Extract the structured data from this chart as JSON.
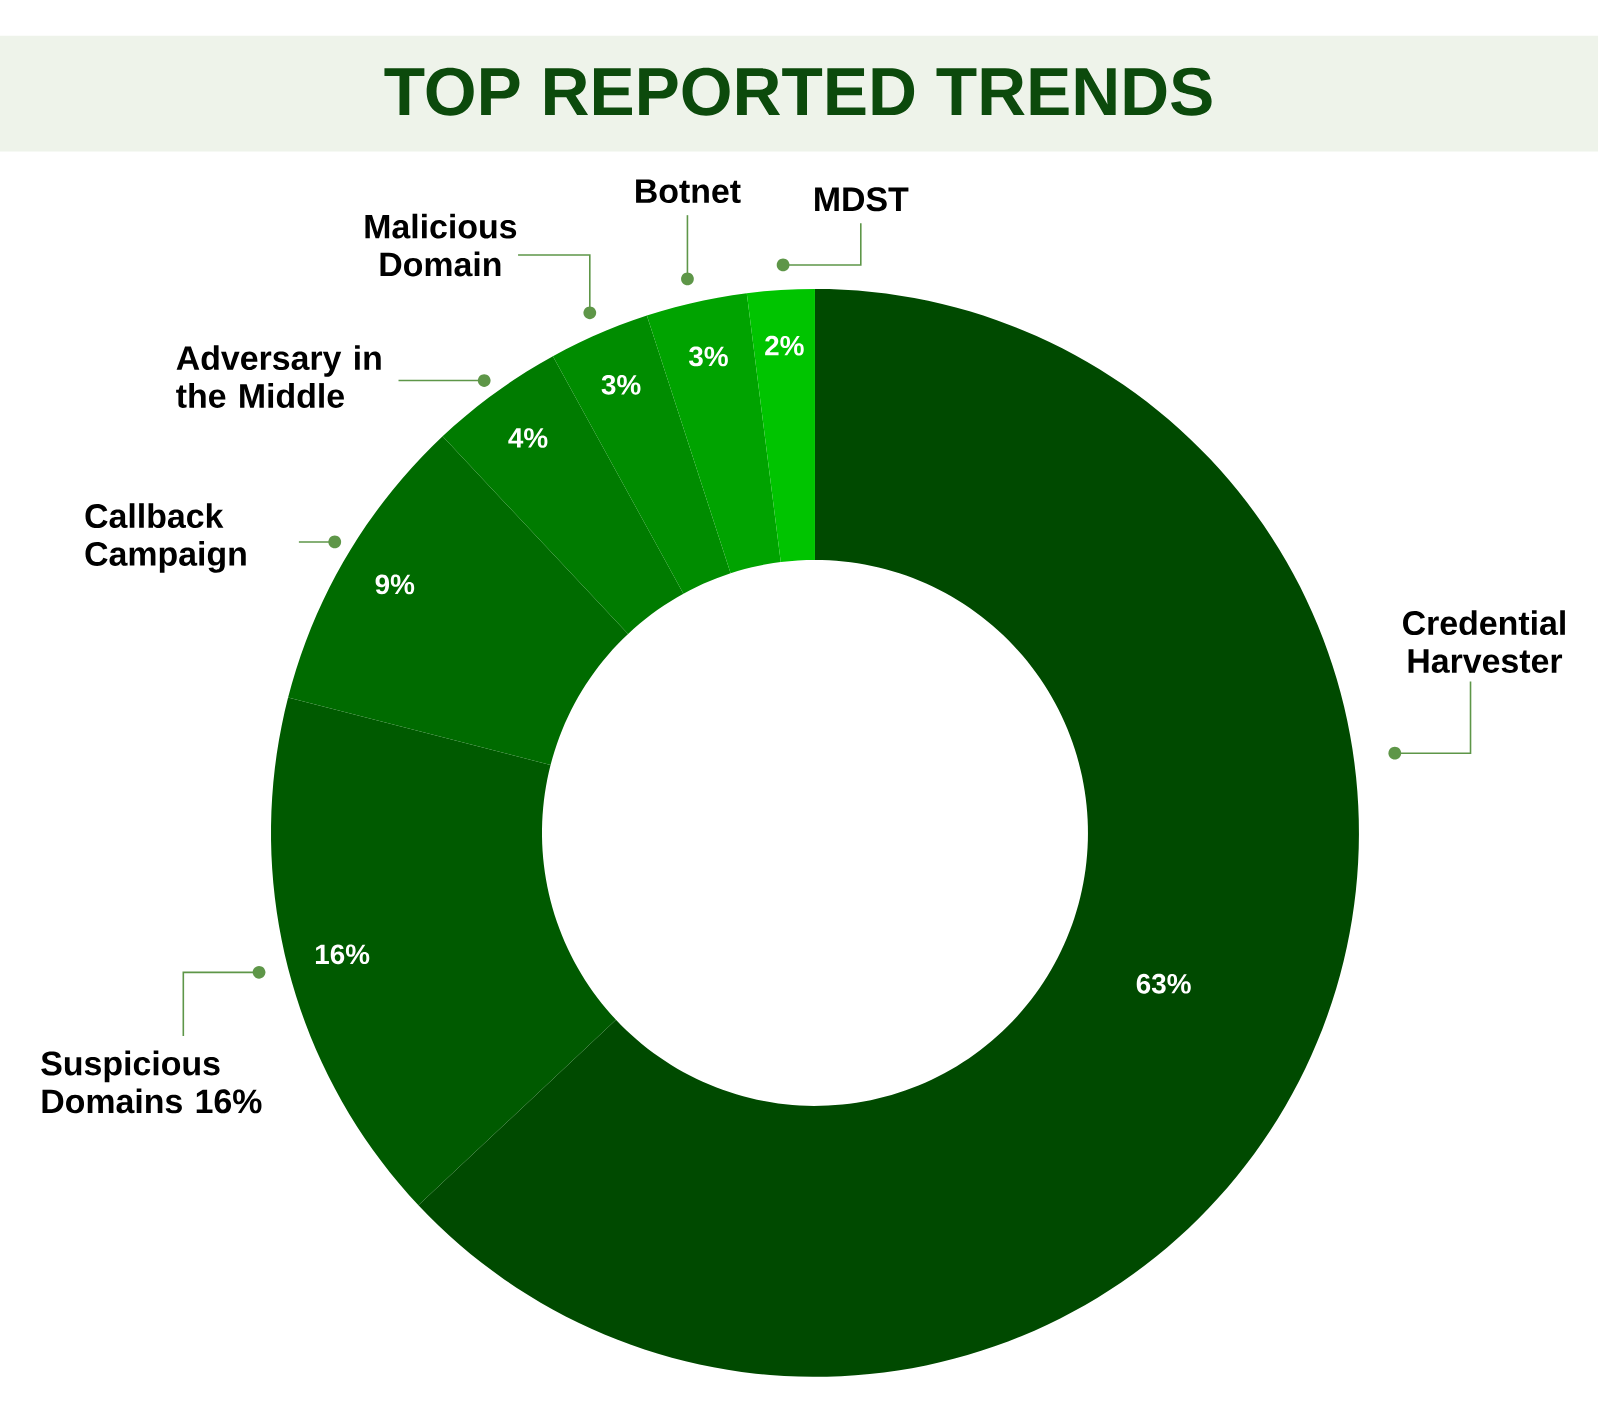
{
  "chart_data": {
    "type": "donut",
    "title": "TOP REPORTED TRENDS",
    "categories": [
      "Credential Harvester",
      "Suspicious Domains 16%",
      "Callback Campaign",
      "Adversary in the Middle",
      "Malicious Domain",
      "Botnet",
      "MDST"
    ],
    "values": [
      63,
      16,
      9,
      4,
      3,
      3,
      2
    ],
    "colors": [
      "#004a00",
      "#005a00",
      "#006b00",
      "#007b00",
      "#008c00",
      "#00a300",
      "#00c400"
    ],
    "value_labels": [
      "63%",
      "16%",
      "9%",
      "4%",
      "3%",
      "3%",
      "2%"
    ]
  }
}
